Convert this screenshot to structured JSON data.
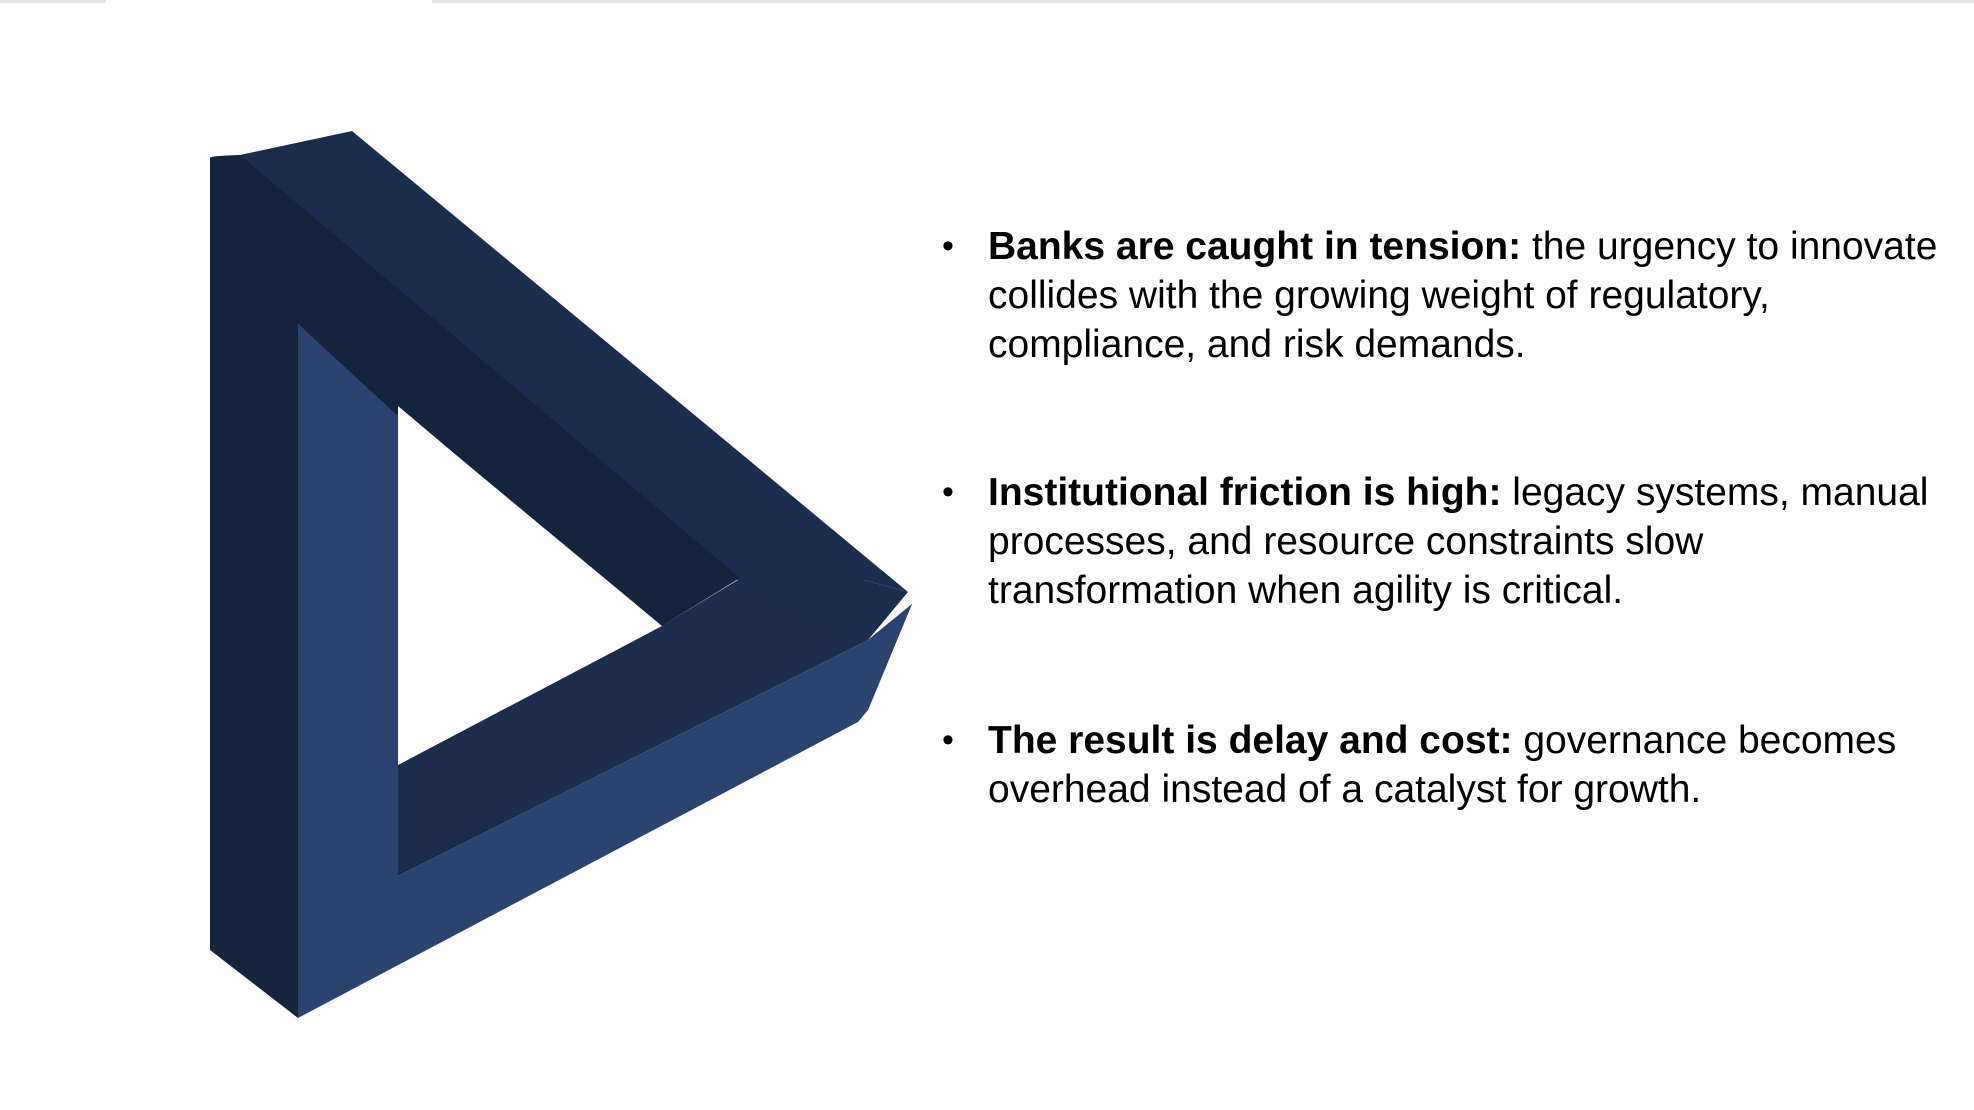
{
  "slide": {
    "accent_color": "#1d3252",
    "graphic": "impossible-triangle",
    "bullets": [
      {
        "lead": "Banks are caught in tension:",
        "text": " the urgency to innovate collides with the growing weight of regulatory, compliance, and risk demands."
      },
      {
        "lead": "Institutional friction is high:",
        "text": " legacy systems, manual processes, and resource constraints slow transformation when agility is critical."
      },
      {
        "lead": "The result is delay and cost:",
        "text": " governance becomes overhead instead of a catalyst for growth."
      }
    ]
  }
}
